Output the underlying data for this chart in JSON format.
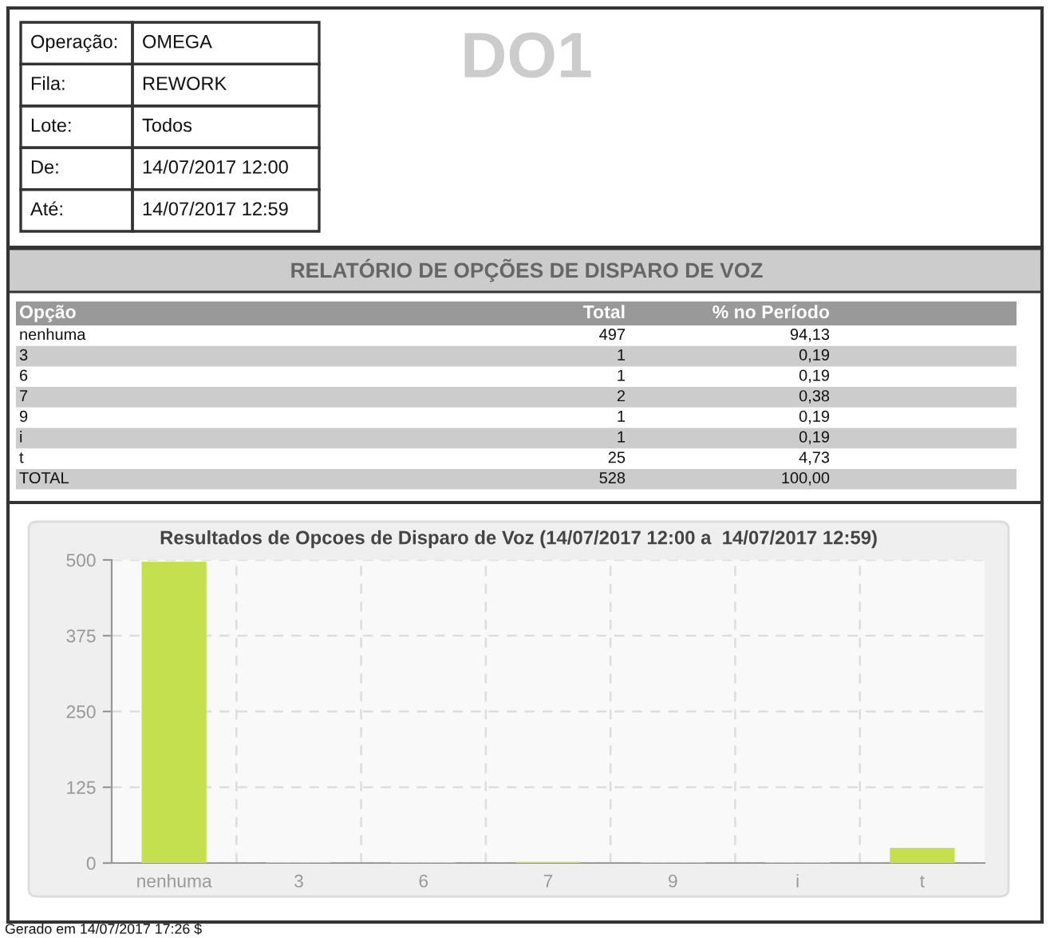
{
  "chart_data": [
    {
      "type": "other",
      "title": "DO1",
      "annotations": [
        "Operação:",
        "OMEGA",
        "Fila:",
        "REWORK",
        "Lote:",
        "Todos",
        "De:",
        "14/07/2017 12:00",
        "Até:",
        "14/07/2017 12:59"
      ]
    },
    {
      "type": "other",
      "title": "RELATÓRIO DE OPÇÕES DE DISPARO DE VOZ",
      "xlabel": "Opção",
      "categories": [
        "nenhuma",
        "3",
        "6",
        "7",
        "9",
        "i",
        "t",
        "TOTAL"
      ],
      "data_labels": true,
      "series": [
        {
          "name": "Total",
          "values": [
            497,
            1,
            1,
            2,
            1,
            1,
            25,
            528
          ]
        },
        {
          "name": "% no Período",
          "values": [
            94.13,
            0.19,
            0.19,
            0.38,
            0.19,
            0.19,
            4.73,
            100.0
          ],
          "value_labels": [
            "94,13",
            "0,19",
            "0,19",
            "0,38",
            "0,19",
            "0,19",
            "4,73",
            "100,00"
          ]
        }
      ]
    },
    {
      "type": "bar",
      "title": "Resultados de Opcoes de Disparo de Voz (14/07/2017 12:00 a  14/07/2017 12:59)",
      "categories": [
        "nenhuma",
        "3",
        "6",
        "7",
        "9",
        "i",
        "t"
      ],
      "values": [
        497,
        1,
        1,
        2,
        1,
        1,
        25
      ],
      "color": "#c5e04e",
      "ylim": [
        0,
        500
      ],
      "yticks": [
        0,
        125,
        250,
        375,
        500
      ],
      "grid": true,
      "annotations": [
        "Gerado em 14/07/2017 17:26 $"
      ]
    }
  ]
}
